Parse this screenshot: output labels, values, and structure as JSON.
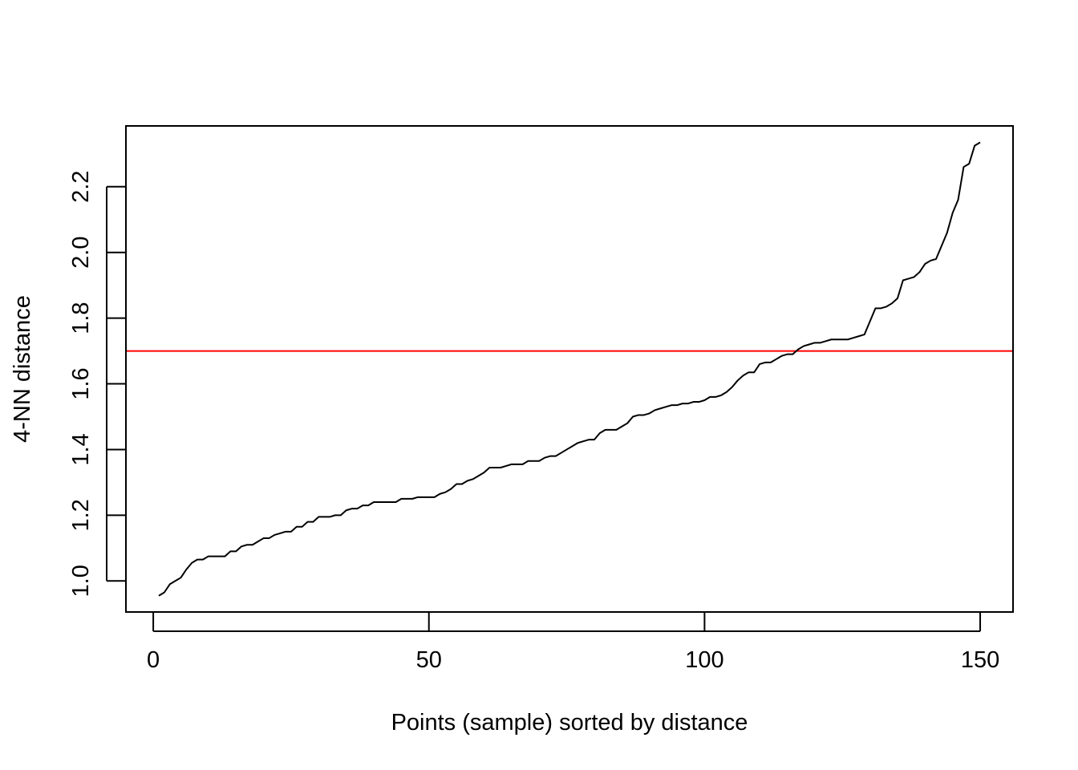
{
  "chart_data": {
    "type": "line",
    "title": "",
    "xlabel": "Points (sample) sorted by distance",
    "ylabel": "4-NN distance",
    "xlim": [
      -4.96,
      155.96
    ],
    "ylim": [
      0.9055,
      2.385
    ],
    "x_ticks": [
      "0",
      "50",
      "100",
      "150"
    ],
    "y_ticks": [
      "1.0",
      "1.2",
      "1.4",
      "1.6",
      "1.8",
      "2.0",
      "2.2"
    ],
    "grid": false,
    "legend": "none",
    "threshold": {
      "y": 1.7,
      "color": "#ff0000"
    },
    "line_color": "#000000",
    "series": [
      {
        "x": [
          1,
          2,
          3,
          4,
          5,
          6,
          7,
          8,
          9,
          10,
          11,
          12,
          13,
          14,
          15,
          16,
          17,
          18,
          19,
          20,
          21,
          22,
          23,
          24,
          25,
          26,
          27,
          28,
          29,
          30,
          31,
          32,
          33,
          34,
          35,
          36,
          37,
          38,
          39,
          40,
          41,
          42,
          43,
          44,
          45,
          46,
          47,
          48,
          49,
          50,
          51,
          52,
          53,
          54,
          55,
          56,
          57,
          58,
          59,
          60,
          61,
          62,
          63,
          64,
          65,
          66,
          67,
          68,
          69,
          70,
          71,
          72,
          73,
          74,
          75,
          76,
          77,
          78,
          79,
          80,
          81,
          82,
          83,
          84,
          85,
          86,
          87,
          88,
          89,
          90,
          91,
          92,
          93,
          94,
          95,
          96,
          97,
          98,
          99,
          100,
          101,
          102,
          103,
          104,
          105,
          106,
          107,
          108,
          109,
          110,
          111,
          112,
          113,
          114,
          115,
          116,
          117,
          118,
          119,
          120,
          121,
          122,
          123,
          124,
          125,
          126,
          127,
          128,
          129,
          130,
          131,
          132,
          133,
          134,
          135,
          136,
          137,
          138,
          139,
          140,
          141,
          142,
          143,
          144,
          145,
          146,
          147,
          148,
          149,
          150
        ],
        "values": [
          0.955,
          0.965,
          0.99,
          1.0,
          1.01,
          1.035,
          1.055,
          1.065,
          1.065,
          1.075,
          1.075,
          1.075,
          1.075,
          1.09,
          1.09,
          1.105,
          1.11,
          1.11,
          1.12,
          1.13,
          1.13,
          1.14,
          1.145,
          1.15,
          1.15,
          1.165,
          1.165,
          1.18,
          1.18,
          1.195,
          1.195,
          1.195,
          1.2,
          1.2,
          1.215,
          1.22,
          1.22,
          1.23,
          1.23,
          1.24,
          1.24,
          1.24,
          1.24,
          1.24,
          1.25,
          1.25,
          1.25,
          1.255,
          1.255,
          1.255,
          1.255,
          1.265,
          1.27,
          1.28,
          1.295,
          1.295,
          1.305,
          1.31,
          1.32,
          1.33,
          1.345,
          1.345,
          1.345,
          1.35,
          1.355,
          1.355,
          1.355,
          1.365,
          1.365,
          1.365,
          1.375,
          1.38,
          1.38,
          1.39,
          1.4,
          1.41,
          1.42,
          1.425,
          1.43,
          1.43,
          1.45,
          1.46,
          1.46,
          1.46,
          1.47,
          1.48,
          1.5,
          1.505,
          1.505,
          1.51,
          1.52,
          1.525,
          1.53,
          1.535,
          1.535,
          1.54,
          1.54,
          1.545,
          1.545,
          1.55,
          1.56,
          1.56,
          1.565,
          1.575,
          1.59,
          1.61,
          1.625,
          1.635,
          1.635,
          1.66,
          1.665,
          1.665,
          1.675,
          1.685,
          1.69,
          1.69,
          1.705,
          1.715,
          1.72,
          1.725,
          1.725,
          1.73,
          1.735,
          1.735,
          1.735,
          1.735,
          1.74,
          1.745,
          1.75,
          1.79,
          1.83,
          1.83,
          1.835,
          1.845,
          1.86,
          1.915,
          1.92,
          1.925,
          1.94,
          1.965,
          1.975,
          1.98,
          2.02,
          2.06,
          2.12,
          2.16,
          2.26,
          2.27,
          2.325,
          2.335
        ]
      }
    ]
  }
}
